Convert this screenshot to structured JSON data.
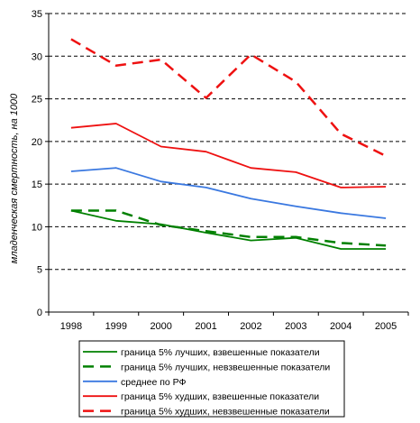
{
  "chart_data": {
    "type": "line",
    "title": "",
    "xlabel": "",
    "ylabel": "младенческая смертность, на 1000",
    "ylim": [
      0,
      35
    ],
    "yticks": [
      0,
      5,
      10,
      15,
      20,
      25,
      30,
      35
    ],
    "x": [
      "1998",
      "1999",
      "2000",
      "2001",
      "2002",
      "2003",
      "2004",
      "2005"
    ],
    "grid": "horizontal dashed",
    "legend_position": "bottom",
    "series": [
      {
        "name": "граница 5% лучших, взвешенные показатели",
        "color": "#008000",
        "dash": "solid",
        "values": [
          11.9,
          10.7,
          10.3,
          9.3,
          8.4,
          8.7,
          7.4,
          7.4
        ]
      },
      {
        "name": "граница 5% лучших, невзвешенные показатели",
        "color": "#008000",
        "dash": "dashed",
        "values": [
          11.9,
          11.9,
          10.2,
          9.5,
          8.8,
          8.8,
          8.1,
          7.8
        ]
      },
      {
        "name": "среднее по РФ",
        "color": "#3a78e0",
        "dash": "solid",
        "values": [
          16.5,
          16.9,
          15.3,
          14.6,
          13.3,
          12.4,
          11.6,
          11.0
        ]
      },
      {
        "name": "граница 5% худших, взвешенные показатели",
        "color": "#ee1111",
        "dash": "solid",
        "values": [
          21.6,
          22.1,
          19.4,
          18.8,
          16.9,
          16.4,
          14.6,
          14.7
        ]
      },
      {
        "name": "граница 5% худших, невзвешенные показатели",
        "color": "#ee1111",
        "dash": "dashed",
        "values": [
          32.0,
          28.9,
          29.6,
          25.1,
          30.2,
          27.0,
          20.9,
          18.3
        ]
      }
    ]
  }
}
